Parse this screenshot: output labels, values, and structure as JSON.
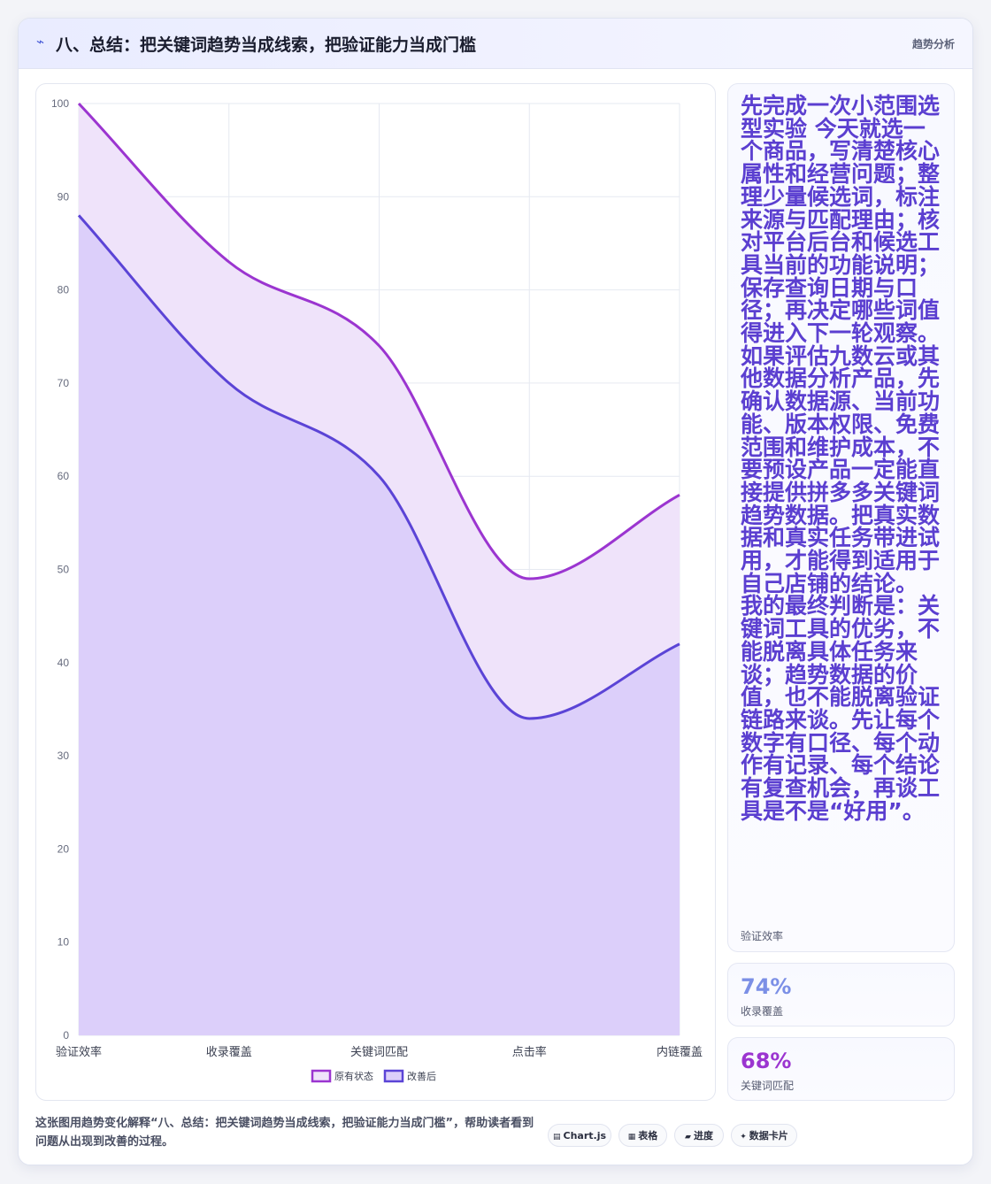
{
  "header": {
    "icon": "trend-icon",
    "title": "八、总结：把关键词趋势当成线索，把验证能力当成门槛",
    "tag": "趋势分析"
  },
  "chart_data": {
    "type": "area",
    "categories": [
      "验证效率",
      "收录覆盖",
      "关键词匹配",
      "点击率",
      "内链覆盖"
    ],
    "series": [
      {
        "name": "原有状态",
        "values": [
          100,
          83,
          74,
          49,
          58
        ],
        "color": "#9b35d0",
        "fill": "#efe3fa"
      },
      {
        "name": "改善后",
        "values": [
          88,
          70,
          60,
          34,
          42
        ],
        "color": "#5b44d6",
        "fill": "#dccffa"
      }
    ],
    "ylim": [
      0,
      100
    ],
    "yticks": [
      0,
      10,
      20,
      30,
      40,
      50,
      60,
      70,
      80,
      90,
      100
    ],
    "grid": true,
    "legend": "bottom"
  },
  "stats": [
    {
      "value": "先完成一次小范围选型实验 今天就选一个商品，写清楚核心属性和经营问题；整理少量候选词，标注来源与匹配理由；核对平台后台和候选工具当前的功能说明；保存查询日期与口径；再决定哪些词值得进入下一轮观察。 如果评估九数云或其他数据分析产品，先确认数据源、当前功能、版本权限、免费范围和维护成本，不要预设产品一定能直接提供拼多多关键词趋势数据。把真实数据和真实任务带进试用，才能得到适用于自己店铺的结论。 我的最终判断是：关键词工具的优劣，不能脱离具体任务来谈；趋势数据的价值，也不能脱离验证链路来谈。先让每个数字有口径、每个动作有记录、每个结论有复查机会，再谈工具是不是“好用”。",
      "label": "验证效率"
    },
    {
      "value": "74%",
      "label": "收录覆盖",
      "color": "#7b8fe6"
    },
    {
      "value": "68%",
      "label": "关键词匹配",
      "color": "#9b35d0"
    }
  ],
  "footer": {
    "description": "这张图用趋势变化解释“八、总结：把关键词趋势当成线索，把验证能力当成门槛”，帮助读者看到问题从出现到改善的过程。",
    "chips": [
      {
        "icon": "chart-icon",
        "glyph": "▤",
        "label": "Chart.js"
      },
      {
        "icon": "table-icon",
        "glyph": "▦",
        "label": "表格"
      },
      {
        "icon": "progress-icon",
        "glyph": "▰",
        "label": "进度"
      },
      {
        "icon": "sparkle-icon",
        "glyph": "✦",
        "label": "数据卡片"
      }
    ]
  }
}
